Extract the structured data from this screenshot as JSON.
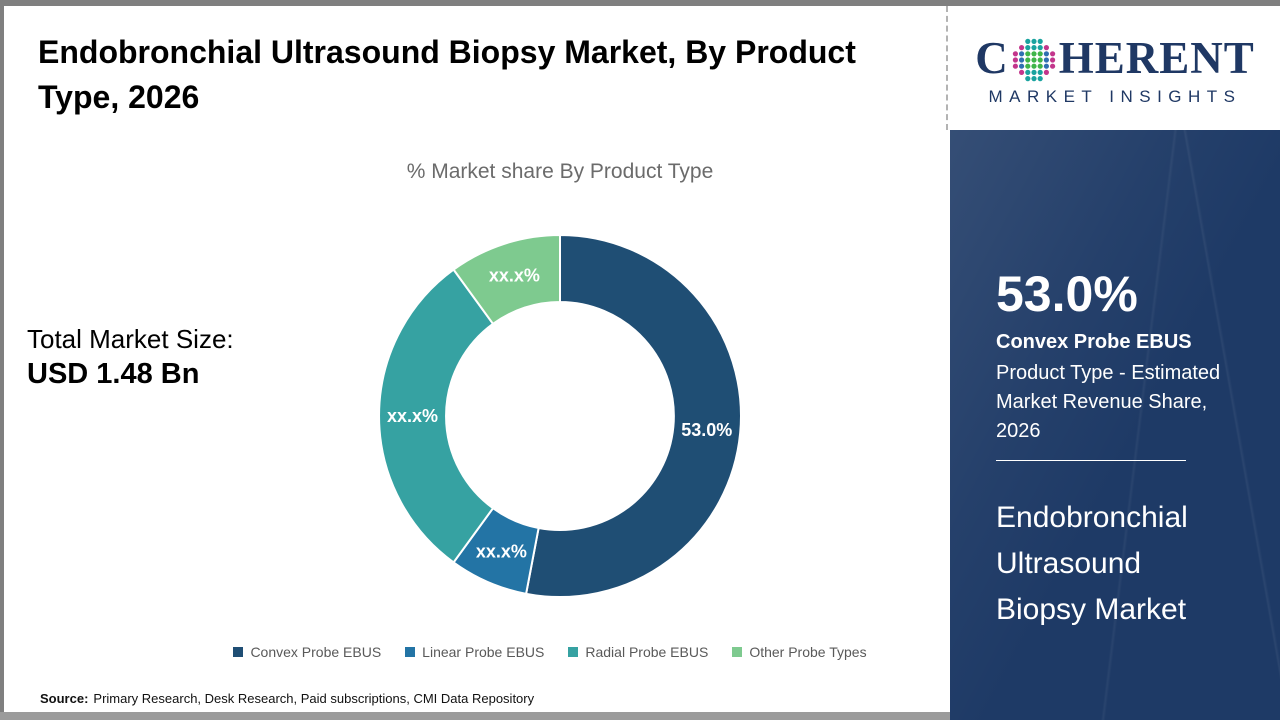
{
  "header": {
    "title": "Endobronchial Ultrasound Biopsy Market, By Product Type, 2026"
  },
  "logo": {
    "word_prefix": "C",
    "word_suffix": "HERENT",
    "tagline": "MARKET INSIGHTS",
    "brand_color": "#1f3864",
    "globe_colors": {
      "m": "#c3368c",
      "t": "#1aa39f",
      "g": "#3fb549",
      "b": "#2f6fb1"
    }
  },
  "main": {
    "total_market_label": "Total Market Size:",
    "total_market_value": "USD 1.48 Bn"
  },
  "chart_data": {
    "type": "pie",
    "subtype": "donut",
    "title": "% Market share By Product Type",
    "labels": [
      "Convex Probe EBUS",
      "Linear Probe EBUS",
      "Radial Probe EBUS",
      "Other Probe Types"
    ],
    "values": [
      53.0,
      7.0,
      30.0,
      10.0
    ],
    "display_labels": [
      "53.0%",
      "xx.x%",
      "xx.x%",
      "xx.x%"
    ],
    "note": "Only the leading share (53.0%) is shown; other segment values are masked as xx.x% and estimated from arc angles",
    "colors": [
      "#1f4e74",
      "#2374a5",
      "#36a2a2",
      "#7eca8f"
    ],
    "start_angle_deg": 0,
    "inner_radius_ratio": 0.63,
    "legend_position": "bottom"
  },
  "sidebar": {
    "stat_value": "53.0%",
    "stat_title": "Convex Probe EBUS",
    "stat_description": "Product Type - Estimated Market Revenue Share, 2026",
    "panel_title": "Endobronchial Ultrasound Biopsy Market",
    "background_color": "#1e3a66"
  },
  "footer": {
    "source_label": "Source:",
    "source_text": "Primary Research, Desk Research, Paid subscriptions, CMI Data Repository"
  }
}
